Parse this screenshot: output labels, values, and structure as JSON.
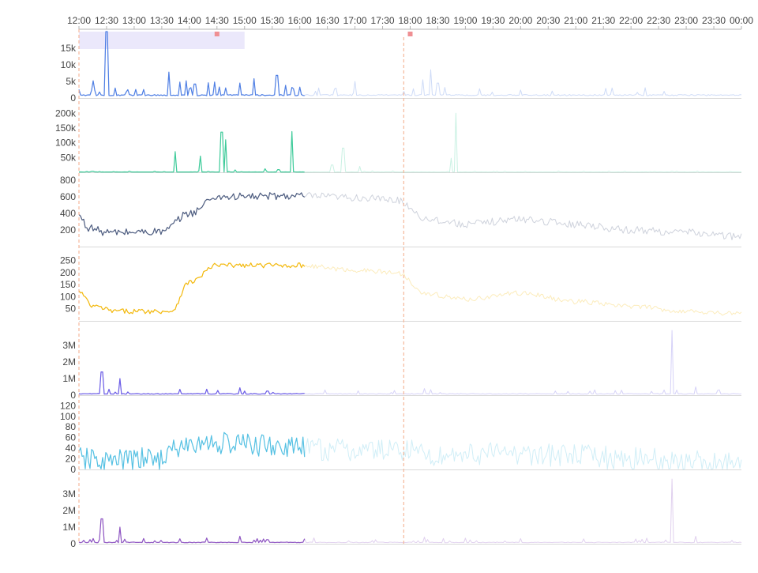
{
  "chart_data": {
    "type": "line",
    "x_axis": {
      "start": "12:00",
      "end": "00:00",
      "tick_labels": [
        "12:00",
        "12:30",
        "13:00",
        "13:30",
        "14:00",
        "14:30",
        "15:00",
        "15:30",
        "16:00",
        "16:30",
        "17:00",
        "17:30",
        "18:00",
        "18:30",
        "19:00",
        "19:30",
        "20:00",
        "20:30",
        "21:00",
        "21:30",
        "22:00",
        "22:30",
        "23:00",
        "23:30",
        "00:00"
      ],
      "grid": false
    },
    "cursor": {
      "time": "12:00",
      "color": "#f6b89b"
    },
    "brush": {
      "from": "12:00",
      "to": "15:00",
      "color": "#ebe8fb"
    },
    "markers": [
      {
        "time": "14:30",
        "color": "#ef8f93"
      },
      {
        "time": "18:00",
        "color": "#ef8f93"
      }
    ],
    "hover_line": {
      "time": "17:53",
      "color": "#f6b89b"
    },
    "highlight_until": "16:05",
    "series": [
      {
        "color": "#4f7fe4",
        "ylim": [
          0,
          20000
        ],
        "y_tick_values": [
          0,
          5000,
          10000,
          15000
        ],
        "y_tick_labels": [
          "0",
          "5k",
          "10k",
          "15k"
        ],
        "shape": "spiky",
        "base": 700,
        "noise": 350,
        "spikes": [
          {
            "t": "12:15",
            "v": 5200
          },
          {
            "t": "12:30",
            "v": 20000
          },
          {
            "t": "12:40",
            "v": 3000
          },
          {
            "t": "13:38",
            "v": 7800
          },
          {
            "t": "13:50",
            "v": 4800
          },
          {
            "t": "13:56",
            "v": 5200
          },
          {
            "t": "14:06",
            "v": 4200
          },
          {
            "t": "14:20",
            "v": 4600
          },
          {
            "t": "14:28",
            "v": 4800
          },
          {
            "t": "14:55",
            "v": 4500
          },
          {
            "t": "15:10",
            "v": 5800
          },
          {
            "t": "15:35",
            "v": 6800
          },
          {
            "t": "15:45",
            "v": 3800
          },
          {
            "t": "15:52",
            "v": 3200
          },
          {
            "t": "16:40",
            "v": 3000
          },
          {
            "t": "17:00",
            "v": 5000
          },
          {
            "t": "18:14",
            "v": 5500
          },
          {
            "t": "18:22",
            "v": 8500
          },
          {
            "t": "18:30",
            "v": 4500
          },
          {
            "t": "18:38",
            "v": 3200
          },
          {
            "t": "19:15",
            "v": 2800
          },
          {
            "t": "20:00",
            "v": 2400
          }
        ]
      },
      {
        "color": "#3ecb9a",
        "ylim": [
          0,
          225000
        ],
        "y_tick_values": [
          50000,
          100000,
          150000,
          200000
        ],
        "y_tick_labels": [
          "50k",
          "100k",
          "150k",
          "200k"
        ],
        "shape": "spiky",
        "base": 800,
        "noise": 500,
        "spikes": [
          {
            "t": "13:45",
            "v": 70000
          },
          {
            "t": "14:12",
            "v": 55000
          },
          {
            "t": "14:35",
            "v": 136000
          },
          {
            "t": "14:39",
            "v": 110000
          },
          {
            "t": "14:50",
            "v": 8000
          },
          {
            "t": "15:22",
            "v": 12000
          },
          {
            "t": "15:37",
            "v": 9000
          },
          {
            "t": "15:52",
            "v": 138000
          },
          {
            "t": "16:35",
            "v": 25000
          },
          {
            "t": "16:47",
            "v": 82000
          },
          {
            "t": "17:05",
            "v": 20000
          },
          {
            "t": "18:44",
            "v": 48000
          },
          {
            "t": "18:50",
            "v": 200000
          }
        ]
      },
      {
        "color": "#4e5d80",
        "ylim": [
          0,
          800
        ],
        "y_tick_values": [
          200,
          400,
          600,
          800
        ],
        "y_tick_labels": [
          "200",
          "400",
          "600",
          "800"
        ],
        "shape": "smooth",
        "noise": 45,
        "knots": [
          {
            "t": "12:00",
            "v": 370
          },
          {
            "t": "12:10",
            "v": 230
          },
          {
            "t": "12:30",
            "v": 170
          },
          {
            "t": "13:30",
            "v": 180
          },
          {
            "t": "14:00",
            "v": 400
          },
          {
            "t": "14:30",
            "v": 600
          },
          {
            "t": "16:00",
            "v": 610
          },
          {
            "t": "17:00",
            "v": 590
          },
          {
            "t": "17:45",
            "v": 560
          },
          {
            "t": "18:20",
            "v": 330
          },
          {
            "t": "19:00",
            "v": 270
          },
          {
            "t": "20:00",
            "v": 330
          },
          {
            "t": "21:00",
            "v": 270
          },
          {
            "t": "22:00",
            "v": 200
          },
          {
            "t": "23:00",
            "v": 170
          },
          {
            "t": "00:00",
            "v": 120
          }
        ]
      },
      {
        "color": "#f3b90e",
        "ylim": [
          0,
          275
        ],
        "y_tick_values": [
          50,
          100,
          150,
          200,
          250
        ],
        "y_tick_labels": [
          "50",
          "100",
          "150",
          "200",
          "250"
        ],
        "shape": "smooth",
        "noise": 10,
        "knots": [
          {
            "t": "12:00",
            "v": 120
          },
          {
            "t": "12:15",
            "v": 60
          },
          {
            "t": "12:40",
            "v": 40
          },
          {
            "t": "13:40",
            "v": 40
          },
          {
            "t": "14:00",
            "v": 160
          },
          {
            "t": "14:30",
            "v": 230
          },
          {
            "t": "16:00",
            "v": 230
          },
          {
            "t": "17:00",
            "v": 210
          },
          {
            "t": "17:45",
            "v": 200
          },
          {
            "t": "18:20",
            "v": 110
          },
          {
            "t": "19:00",
            "v": 90
          },
          {
            "t": "20:00",
            "v": 115
          },
          {
            "t": "21:00",
            "v": 80
          },
          {
            "t": "22:00",
            "v": 60
          },
          {
            "t": "23:00",
            "v": 40
          },
          {
            "t": "00:00",
            "v": 30
          }
        ]
      },
      {
        "color": "#6b5ce6",
        "ylim": [
          0,
          4000000
        ],
        "y_tick_values": [
          0,
          1000000,
          2000000,
          3000000
        ],
        "y_tick_labels": [
          "0",
          "1M",
          "2M",
          "3M"
        ],
        "shape": "spiky",
        "base": 60000,
        "noise": 40000,
        "spikes": [
          {
            "t": "12:25",
            "v": 1400000
          },
          {
            "t": "12:45",
            "v": 1000000
          },
          {
            "t": "13:50",
            "v": 350000
          },
          {
            "t": "14:55",
            "v": 450000
          },
          {
            "t": "15:25",
            "v": 250000
          },
          {
            "t": "18:15",
            "v": 400000
          },
          {
            "t": "22:45",
            "v": 3900000
          },
          {
            "t": "23:10",
            "v": 500000
          }
        ]
      },
      {
        "color": "#56c1e3",
        "ylim": [
          0,
          125
        ],
        "y_tick_values": [
          0,
          20,
          40,
          60,
          80,
          100,
          120
        ],
        "y_tick_labels": [
          "0",
          "20",
          "40",
          "60",
          "80",
          "100",
          "120"
        ],
        "shape": "smooth",
        "noise": 22,
        "knots": [
          {
            "t": "12:00",
            "v": 20
          },
          {
            "t": "12:30",
            "v": 15
          },
          {
            "t": "13:20",
            "v": 20
          },
          {
            "t": "14:00",
            "v": 45
          },
          {
            "t": "14:30",
            "v": 50
          },
          {
            "t": "15:30",
            "v": 45
          },
          {
            "t": "16:00",
            "v": 40
          },
          {
            "t": "17:00",
            "v": 35
          },
          {
            "t": "17:55",
            "v": 38
          },
          {
            "t": "18:30",
            "v": 25
          },
          {
            "t": "19:00",
            "v": 30
          },
          {
            "t": "20:00",
            "v": 30
          },
          {
            "t": "21:00",
            "v": 25
          },
          {
            "t": "22:00",
            "v": 20
          },
          {
            "t": "23:00",
            "v": 15
          },
          {
            "t": "00:00",
            "v": 10
          }
        ]
      },
      {
        "color": "#8e55c2",
        "ylim": [
          0,
          4000000
        ],
        "y_tick_values": [
          0,
          1000000,
          2000000,
          3000000
        ],
        "y_tick_labels": [
          "0",
          "1M",
          "2M",
          "3M"
        ],
        "shape": "spiky",
        "base": 60000,
        "noise": 40000,
        "spikes": [
          {
            "t": "12:25",
            "v": 1500000
          },
          {
            "t": "12:45",
            "v": 1000000
          },
          {
            "t": "13:50",
            "v": 300000
          },
          {
            "t": "14:55",
            "v": 450000
          },
          {
            "t": "15:25",
            "v": 250000
          },
          {
            "t": "16:05",
            "v": 300000
          },
          {
            "t": "18:15",
            "v": 400000
          },
          {
            "t": "22:45",
            "v": 3900000
          },
          {
            "t": "23:10",
            "v": 450000
          }
        ]
      }
    ]
  }
}
